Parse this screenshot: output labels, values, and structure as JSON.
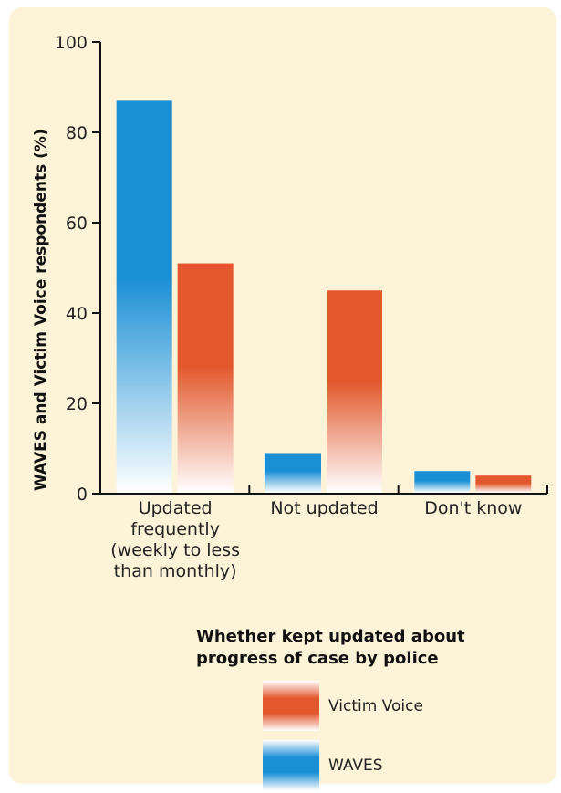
{
  "chart_data": {
    "type": "bar",
    "categories": [
      "Updated frequently (weekly to less than monthly)",
      "Not updated",
      "Don't know"
    ],
    "category_lines": [
      [
        "Updated",
        "frequently",
        "(weekly to less",
        "than monthly)"
      ],
      [
        "Not updated"
      ],
      [
        "Don't know"
      ]
    ],
    "series": [
      {
        "name": "WAVES",
        "values": [
          87,
          9,
          5
        ],
        "color": "#1a8fd5"
      },
      {
        "name": "Victim Voice",
        "values": [
          51,
          45,
          4
        ],
        "color": "#e2582c"
      }
    ],
    "xlabel": "Whether kept updated about progress of case by police",
    "ylabel": "WAVES and Victim Voice respondents (%)",
    "ylim": [
      0,
      100
    ],
    "yticks": [
      0,
      20,
      40,
      60,
      80,
      100
    ],
    "grid": false,
    "legend": [
      {
        "name": "Victim Voice",
        "color": "#e2582c"
      },
      {
        "name": "WAVES",
        "color": "#1a8fd5"
      }
    ],
    "legend_position": "bottom-center"
  }
}
